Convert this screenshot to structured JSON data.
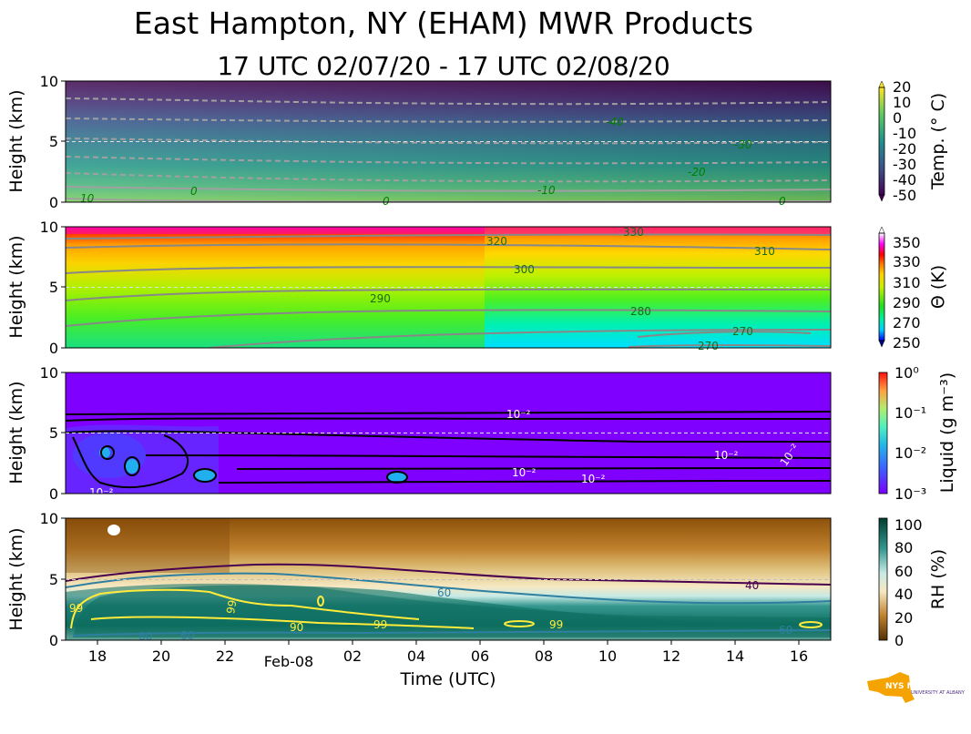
{
  "header": {
    "title": "East Hampton, NY (EHAM) MWR Products",
    "subtitle": "17 UTC 02/07/20 - 17 UTC 02/08/20"
  },
  "logo": {
    "text": "NYS Mesonet",
    "subtext": "UNIVERSITY AT ALBANY"
  },
  "chart_data": [
    {
      "type": "heatmap",
      "name": "temperature",
      "ylabel": "Height (km)",
      "yticks": [
        "0",
        "5",
        "10"
      ],
      "ylim": [
        0,
        10
      ],
      "colorbar": {
        "label": "Temp. (° C)",
        "ticks": [
          "20",
          "10",
          "0",
          "-10",
          "-20",
          "-30",
          "-40",
          "-50"
        ],
        "range": [
          -50,
          20
        ]
      },
      "contour_labels": [
        "10",
        "0",
        "0",
        "-10",
        "-20",
        "-30",
        "-40",
        "0"
      ],
      "colors": [
        "#3b0f57",
        "#3e3f85",
        "#2f6b8e",
        "#23898e",
        "#29af7f",
        "#8fd744",
        "#fde725"
      ]
    },
    {
      "type": "heatmap",
      "name": "potential_temperature",
      "ylabel": "Height (km)",
      "yticks": [
        "0",
        "5",
        "10"
      ],
      "ylim": [
        0,
        10
      ],
      "colorbar": {
        "label": "Θ (K)",
        "ticks": [
          "350",
          "330",
          "310",
          "290",
          "270",
          "250"
        ],
        "range": [
          250,
          360
        ]
      },
      "contour_labels": [
        "330",
        "320",
        "310",
        "300",
        "290",
        "280",
        "270",
        "270"
      ]
    },
    {
      "type": "heatmap",
      "name": "liquid",
      "ylabel": "Height (km)",
      "yticks": [
        "0",
        "5",
        "10"
      ],
      "ylim": [
        0,
        10
      ],
      "colorbar": {
        "label": "Liquid (g m⁻³)",
        "ticks": [
          "10⁰",
          "10⁻¹",
          "10⁻²",
          "10⁻³"
        ],
        "range": [
          0.001,
          1
        ],
        "scale": "log"
      },
      "contour_labels": [
        "10⁻²",
        "10⁻²",
        "10⁻²",
        "10⁻²",
        "10⁻²",
        "10⁻²"
      ]
    },
    {
      "type": "heatmap",
      "name": "relative_humidity",
      "ylabel": "Height (km)",
      "yticks": [
        "0",
        "5",
        "10"
      ],
      "ylim": [
        0,
        10
      ],
      "xlabel": "Time (UTC)",
      "xticks": [
        "18",
        "20",
        "22",
        "Feb-08",
        "02",
        "04",
        "06",
        "08",
        "10",
        "12",
        "14",
        "16"
      ],
      "colorbar": {
        "label": "RH (%)",
        "ticks": [
          "100",
          "80",
          "60",
          "40",
          "20",
          "0"
        ],
        "range": [
          0,
          105
        ]
      },
      "contour_labels": [
        "99",
        "99",
        "99",
        "99",
        "60",
        "60",
        "60",
        "40",
        "90",
        "60"
      ]
    }
  ]
}
